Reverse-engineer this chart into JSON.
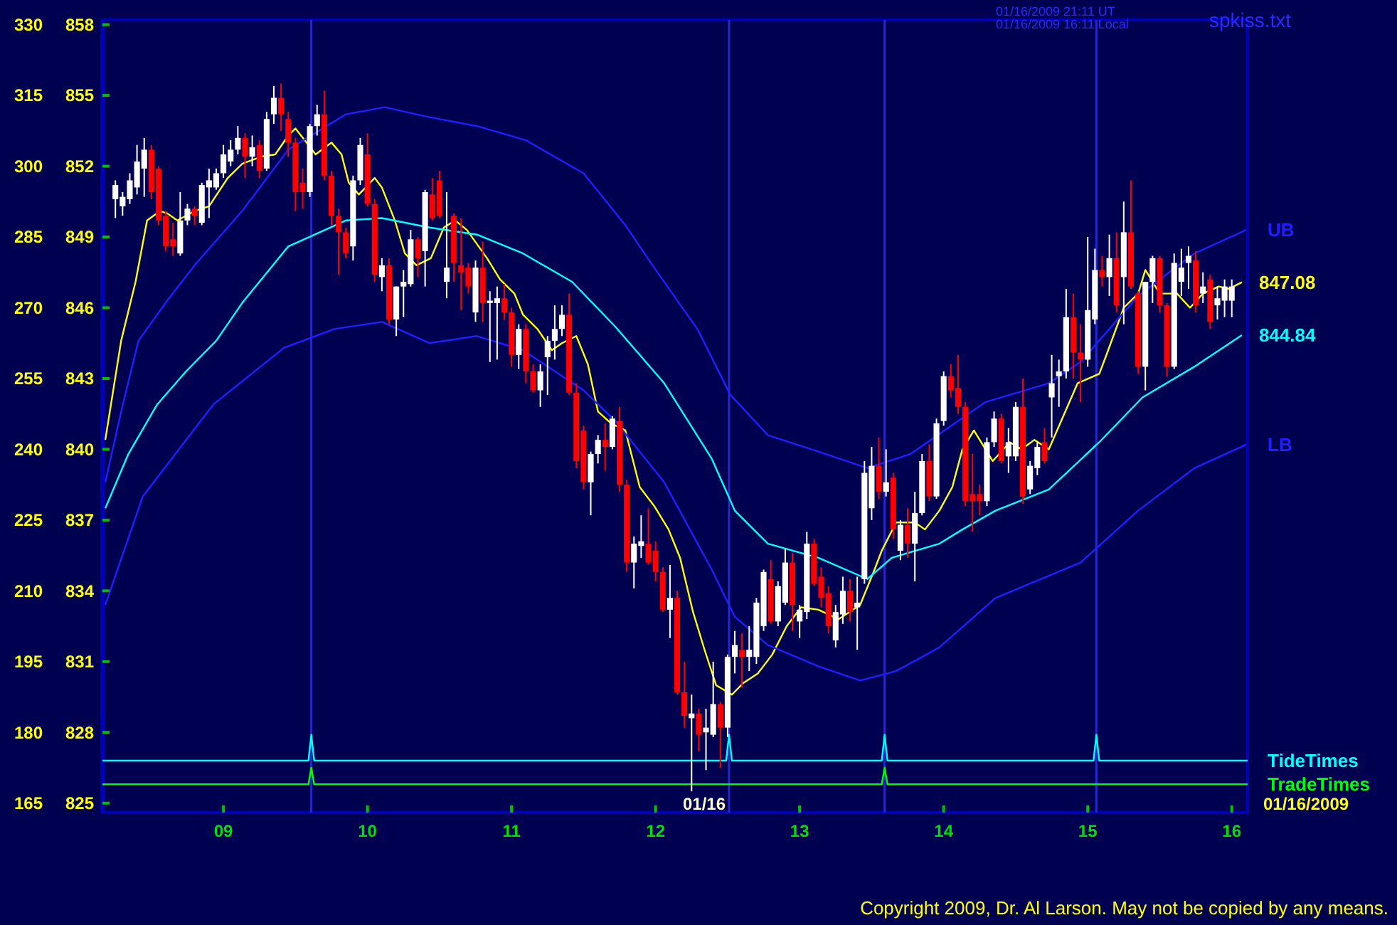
{
  "chart_data": {
    "type": "candlestick",
    "x": [
      8.25,
      8.3,
      8.35,
      8.4,
      8.45,
      8.5,
      8.55,
      8.6,
      8.65,
      8.7,
      8.75,
      8.8,
      8.85,
      8.9,
      8.95,
      9,
      9.05,
      9.1,
      9.15,
      9.2,
      9.25,
      9.3,
      9.35,
      9.4,
      9.45,
      9.5,
      9.55,
      9.6,
      9.65,
      9.7,
      9.75,
      9.8,
      9.85,
      9.9,
      9.95,
      10,
      10.05,
      10.1,
      10.15,
      10.2,
      10.25,
      10.3,
      10.35,
      10.4,
      10.45,
      10.5,
      10.55,
      10.6,
      10.65,
      10.7,
      10.75,
      10.8,
      10.85,
      10.9,
      10.95,
      11,
      11.05,
      11.1,
      11.15,
      11.2,
      11.25,
      11.3,
      11.35,
      11.4,
      11.45,
      11.5,
      11.55,
      11.6,
      11.65,
      11.7,
      11.75,
      11.8,
      11.85,
      11.9,
      11.95,
      12,
      12.05,
      12.1,
      12.15,
      12.2,
      12.25,
      12.3,
      12.35,
      12.4,
      12.45,
      12.5,
      12.55,
      12.6,
      12.65,
      12.7,
      12.75,
      12.8,
      12.85,
      12.9,
      12.95,
      13,
      13.05,
      13.1,
      13.15,
      13.2,
      13.25,
      13.3,
      13.35,
      13.4,
      13.45,
      13.5,
      13.55,
      13.6,
      13.65,
      13.7,
      13.75,
      13.8,
      13.85,
      13.9,
      13.95,
      14,
      14.05,
      14.1,
      14.15,
      14.2,
      14.25,
      14.3,
      14.35,
      14.4,
      14.45,
      14.5,
      14.55,
      14.6,
      14.65,
      14.7,
      14.75,
      14.8,
      14.85,
      14.9,
      14.95,
      15,
      15.05,
      15.1,
      15.15,
      15.2,
      15.25,
      15.3,
      15.35,
      15.4,
      15.45,
      15.5,
      15.55,
      15.6,
      15.65,
      15.7,
      15.75,
      15.8,
      15.85,
      15.9,
      15.95,
      16
    ],
    "ohlc": [
      [
        850.6,
        851.4,
        849.8,
        851.2
      ],
      [
        850.3,
        850.9,
        849.9,
        850.7
      ],
      [
        850.6,
        851.7,
        850.4,
        851.4
      ],
      [
        851.1,
        852.9,
        850.8,
        852.2
      ],
      [
        851.9,
        853.2,
        850.7,
        852.7
      ],
      [
        852.7,
        852.9,
        850.6,
        850.9
      ],
      [
        851.9,
        852.0,
        849.5,
        849.7
      ],
      [
        849.9,
        850.1,
        848.4,
        848.6
      ],
      [
        848.9,
        849.6,
        848.2,
        848.6
      ],
      [
        848.3,
        850.9,
        848.2,
        849.7
      ],
      [
        849.7,
        850.4,
        849.5,
        850.2
      ],
      [
        850.2,
        850.3,
        849.5,
        849.9
      ],
      [
        849.6,
        851.3,
        849.5,
        851.2
      ],
      [
        851.1,
        851.9,
        849.8,
        851.4
      ],
      [
        851.1,
        851.9,
        851.0,
        851.7
      ],
      [
        851.7,
        852.9,
        851.5,
        852.5
      ],
      [
        852.2,
        853.1,
        852.0,
        852.7
      ],
      [
        852.7,
        853.7,
        852.5,
        853.2
      ],
      [
        853.2,
        853.4,
        851.5,
        852.4
      ],
      [
        852.4,
        853.3,
        852.0,
        852.8
      ],
      [
        852.9,
        853.1,
        851.5,
        851.8
      ],
      [
        851.9,
        854.3,
        851.8,
        854.0
      ],
      [
        854.2,
        855.4,
        853.8,
        854.9
      ],
      [
        854.9,
        855.5,
        853.5,
        854.2
      ],
      [
        854.0,
        854.3,
        852.4,
        853.0
      ],
      [
        853.0,
        853.2,
        850.1,
        850.9
      ],
      [
        851.3,
        851.9,
        850.2,
        850.9
      ],
      [
        850.9,
        853.8,
        850.7,
        853.7
      ],
      [
        853.7,
        854.6,
        853.3,
        854.2
      ],
      [
        854.2,
        855.2,
        851.4,
        851.6
      ],
      [
        851.6,
        851.8,
        849.5,
        849.9
      ],
      [
        849.9,
        850.2,
        847.4,
        849.2
      ],
      [
        849.2,
        849.4,
        848.1,
        848.3
      ],
      [
        848.6,
        851.6,
        848.0,
        851.4
      ],
      [
        851.4,
        853.2,
        851.2,
        852.9
      ],
      [
        852.5,
        853.4,
        850.3,
        850.4
      ],
      [
        850.4,
        850.6,
        847.1,
        847.4
      ],
      [
        847.3,
        848.1,
        846.7,
        847.8
      ],
      [
        847.8,
        848.1,
        845.3,
        845.5
      ],
      [
        845.5,
        846.9,
        844.8,
        846.9
      ],
      [
        846.9,
        847.6,
        845.6,
        847.1
      ],
      [
        847.0,
        849.3,
        846.9,
        848.9
      ],
      [
        848.9,
        849.0,
        847.3,
        848.1
      ],
      [
        848.4,
        851.0,
        846.9,
        850.9
      ],
      [
        850.8,
        851.5,
        849.7,
        849.8
      ],
      [
        851.4,
        851.8,
        849.8,
        849.9
      ],
      [
        847.1,
        850.9,
        846.4,
        847.7
      ],
      [
        849.9,
        850.0,
        847.1,
        847.9
      ],
      [
        847.8,
        849.8,
        845.9,
        847.5
      ],
      [
        847.7,
        847.9,
        846.6,
        846.9
      ],
      [
        845.8,
        848.0,
        845.4,
        847.7
      ],
      [
        847.7,
        848.8,
        845.4,
        846.2
      ],
      [
        846.2,
        846.7,
        843.7,
        846.3
      ],
      [
        846.2,
        846.9,
        843.8,
        846.4
      ],
      [
        846.4,
        847.0,
        845.5,
        845.8
      ],
      [
        845.8,
        846.0,
        843.5,
        844.0
      ],
      [
        844.0,
        845.3,
        843.4,
        845.1
      ],
      [
        845.1,
        845.3,
        842.8,
        843.3
      ],
      [
        843.3,
        843.6,
        842.4,
        842.5
      ],
      [
        842.5,
        843.6,
        841.8,
        843.3
      ],
      [
        843.9,
        844.8,
        842.3,
        844.6
      ],
      [
        844.6,
        846.1,
        843.8,
        845.1
      ],
      [
        845.1,
        846.1,
        844.8,
        845.7
      ],
      [
        845.7,
        846.6,
        842.3,
        842.4
      ],
      [
        842.4,
        842.8,
        839.2,
        839.5
      ],
      [
        840.8,
        841.0,
        838.3,
        838.6
      ],
      [
        838.6,
        839.9,
        837.2,
        839.8
      ],
      [
        839.8,
        840.6,
        839.4,
        840.4
      ],
      [
        840.4,
        841.1,
        839.1,
        840.1
      ],
      [
        840.1,
        841.4,
        840.0,
        841.3
      ],
      [
        841.2,
        841.8,
        838.2,
        838.5
      ],
      [
        838.5,
        838.7,
        834.8,
        835.2
      ],
      [
        835.2,
        836.3,
        834.1,
        836.0
      ],
      [
        835.9,
        837.2,
        835.4,
        836.1
      ],
      [
        836.0,
        837.5,
        835.1,
        835.2
      ],
      [
        835.7,
        836.1,
        834.4,
        834.8
      ],
      [
        834.8,
        835.0,
        833.1,
        833.2
      ],
      [
        833.2,
        835.1,
        832.0,
        833.7
      ],
      [
        833.7,
        834.0,
        829.6,
        829.7
      ],
      [
        829.7,
        831.0,
        828.2,
        828.7
      ],
      [
        828.6,
        829.6,
        825.5,
        828.8
      ],
      [
        828.8,
        829.0,
        827.2,
        827.9
      ],
      [
        828.0,
        829.0,
        826.4,
        828.2
      ],
      [
        827.9,
        831.0,
        827.8,
        829.2
      ],
      [
        829.2,
        829.3,
        826.5,
        828.2
      ],
      [
        828.2,
        831.3,
        827.8,
        831.2
      ],
      [
        831.2,
        832.3,
        830.5,
        831.7
      ],
      [
        831.5,
        832.2,
        829.9,
        831.2
      ],
      [
        831.2,
        832.5,
        830.6,
        831.5
      ],
      [
        831.2,
        833.7,
        830.9,
        833.5
      ],
      [
        832.5,
        834.9,
        832.3,
        834.8
      ],
      [
        834.5,
        835.3,
        832.6,
        832.7
      ],
      [
        832.7,
        834.4,
        832.5,
        834.2
      ],
      [
        833.5,
        835.8,
        833.4,
        835.2
      ],
      [
        835.2,
        835.6,
        832.3,
        833.4
      ],
      [
        832.7,
        833.4,
        832.0,
        833.2
      ],
      [
        833.1,
        836.5,
        832.8,
        836.0
      ],
      [
        836.0,
        836.2,
        834.2,
        834.3
      ],
      [
        834.6,
        835.0,
        833.3,
        833.7
      ],
      [
        833.9,
        834.2,
        832.2,
        832.5
      ],
      [
        831.9,
        833.4,
        831.6,
        833.1
      ],
      [
        833.0,
        834.6,
        832.6,
        834.0
      ],
      [
        834.0,
        834.5,
        832.7,
        833.1
      ],
      [
        833.3,
        834.6,
        831.5,
        833.5
      ],
      [
        834.5,
        839.5,
        834.3,
        839.0
      ],
      [
        837.5,
        840.1,
        837.0,
        839.3
      ],
      [
        839.3,
        840.5,
        837.9,
        838.2
      ],
      [
        838.2,
        840.0,
        838.0,
        838.6
      ],
      [
        838.8,
        839.0,
        836.2,
        836.6
      ],
      [
        835.7,
        837.0,
        835.3,
        836.8
      ],
      [
        836.8,
        837.5,
        835.4,
        836.0
      ],
      [
        836.0,
        838.2,
        834.4,
        837.3
      ],
      [
        837.3,
        839.8,
        837.2,
        839.5
      ],
      [
        839.5,
        840.2,
        837.8,
        838.0
      ],
      [
        838.0,
        841.3,
        837.9,
        841.1
      ],
      [
        841.2,
        843.3,
        841.0,
        843.1
      ],
      [
        843.1,
        843.6,
        842.2,
        842.5
      ],
      [
        842.6,
        844.0,
        841.5,
        841.8
      ],
      [
        841.8,
        842.0,
        837.6,
        837.8
      ],
      [
        838.1,
        839.8,
        836.5,
        837.8
      ],
      [
        838.1,
        838.5,
        837.2,
        837.8
      ],
      [
        837.8,
        840.5,
        837.6,
        840.3
      ],
      [
        840.3,
        841.6,
        840.1,
        841.3
      ],
      [
        841.3,
        841.5,
        839.4,
        839.5
      ],
      [
        839.7,
        840.9,
        839.0,
        840.3
      ],
      [
        839.7,
        842.0,
        839.5,
        841.8
      ],
      [
        841.8,
        843.0,
        837.7,
        838.0
      ],
      [
        838.3,
        839.5,
        838.1,
        839.3
      ],
      [
        839.2,
        840.3,
        838.9,
        840.1
      ],
      [
        840.3,
        840.9,
        839.4,
        839.5
      ],
      [
        842.2,
        844.0,
        840.5,
        842.8
      ],
      [
        843.1,
        843.8,
        841.8,
        843.3
      ],
      [
        843.3,
        846.8,
        843.0,
        845.6
      ],
      [
        845.6,
        846.6,
        843.0,
        844.1
      ],
      [
        844.1,
        845.3,
        842.0,
        843.8
      ],
      [
        843.8,
        849.0,
        843.5,
        845.9
      ],
      [
        845.5,
        848.5,
        845.3,
        847.6
      ],
      [
        847.6,
        848.2,
        846.9,
        847.3
      ],
      [
        847.3,
        849.1,
        846.5,
        848.1
      ],
      [
        848.1,
        849.2,
        845.8,
        846.1
      ],
      [
        847.3,
        850.5,
        845.3,
        849.2
      ],
      [
        849.2,
        851.4,
        846.8,
        846.9
      ],
      [
        846.6,
        846.7,
        843.2,
        843.5
      ],
      [
        843.5,
        847.1,
        842.5,
        847.1
      ],
      [
        847.1,
        848.2,
        846.2,
        848.1
      ],
      [
        848.1,
        848.2,
        845.8,
        846.1
      ],
      [
        846.1,
        846.2,
        843.1,
        843.5
      ],
      [
        843.5,
        848.3,
        843.4,
        847.9
      ],
      [
        847.1,
        848.5,
        846.5,
        847.7
      ],
      [
        847.9,
        848.6,
        846.8,
        848.2
      ],
      [
        848.0,
        848.4,
        845.8,
        846.1
      ],
      [
        846.6,
        847.5,
        846.2,
        846.9
      ],
      [
        847.2,
        847.4,
        845.1,
        845.4
      ],
      [
        846.1,
        846.9,
        845.5,
        846.4
      ],
      [
        846.3,
        847.2,
        845.6,
        846.9
      ],
      [
        846.3,
        847.2,
        845.6,
        846.9
      ]
    ],
    "series": [
      {
        "type": "line",
        "color": "#ffff00",
        "x": [
          8.18,
          8.29,
          8.39,
          8.47,
          8.56,
          8.61,
          8.68,
          8.8,
          8.9,
          9.03,
          9.13,
          9.26,
          9.36,
          9.45,
          9.5,
          9.59,
          9.64,
          9.75,
          9.82,
          9.87,
          9.94,
          10.05,
          10.1,
          10.19,
          10.26,
          10.34,
          10.44,
          10.53,
          10.61,
          10.69,
          10.83,
          10.92,
          11.02,
          11.08,
          11.18,
          11.28,
          11.35,
          11.45,
          11.53,
          11.6,
          11.69,
          11.79,
          11.89,
          11.99,
          12.09,
          12.17,
          12.26,
          12.34,
          12.42,
          12.53,
          12.61,
          12.71,
          12.81,
          12.91,
          13.01,
          13.13,
          13.27,
          13.42,
          13.52,
          13.57,
          13.67,
          13.8,
          13.87,
          13.97,
          14.06,
          14.13,
          14.21,
          14.29,
          14.34,
          14.46,
          14.54,
          14.63,
          14.73,
          14.93,
          15.08,
          15.13,
          15.25,
          15.35,
          15.4,
          15.5,
          15.58,
          15.62,
          15.71,
          15.8,
          15.91,
          15.98,
          16.07
        ],
        "values": [
          840.4,
          844.6,
          847.1,
          849.7,
          850.1,
          850.0,
          849.7,
          850.1,
          850.3,
          851.5,
          852.1,
          852.4,
          852.5,
          853.3,
          853.6,
          852.9,
          852.5,
          853.0,
          852.5,
          851.3,
          850.8,
          851.5,
          851.1,
          849.7,
          848.3,
          847.8,
          848.1,
          849.4,
          849.7,
          849.3,
          848.1,
          847.2,
          846.6,
          845.7,
          845.1,
          844.2,
          844.5,
          844.8,
          843.6,
          841.6,
          841.1,
          840.8,
          838.4,
          837.6,
          836.6,
          835.4,
          833.1,
          831.5,
          830.0,
          829.6,
          830.1,
          830.5,
          831.3,
          832.5,
          833.3,
          833.2,
          832.8,
          833.4,
          834.9,
          835.7,
          836.9,
          836.9,
          836.6,
          837.4,
          838.4,
          840.0,
          840.8,
          840.0,
          839.5,
          840.3,
          840.0,
          840.4,
          840.0,
          842.8,
          843.2,
          844.0,
          846.0,
          846.6,
          847.6,
          846.6,
          846.6,
          846.6,
          846.0,
          846.6,
          846.9,
          846.8,
          847.08
        ]
      },
      {
        "type": "line",
        "color": "#00ffff",
        "x": [
          8.18,
          8.34,
          8.54,
          8.74,
          8.95,
          9.13,
          9.45,
          9.85,
          10.1,
          10.43,
          10.76,
          11.08,
          11.42,
          11.72,
          12.06,
          12.39,
          12.55,
          12.78,
          13.13,
          13.47,
          13.64,
          13.97,
          14.13,
          14.36,
          14.73,
          15.08,
          15.38,
          15.74,
          16.07
        ],
        "values": [
          837.5,
          839.8,
          841.9,
          843.3,
          844.6,
          846.2,
          848.6,
          849.7,
          849.8,
          849.4,
          849.1,
          848.3,
          847.1,
          845.2,
          842.8,
          839.6,
          837.4,
          836.0,
          835.4,
          834.5,
          835.4,
          836.0,
          836.6,
          837.4,
          838.3,
          840.3,
          842.2,
          843.5,
          844.84
        ]
      },
      {
        "type": "line",
        "name": "UB",
        "color": "#2020ff",
        "x": [
          8.18,
          8.29,
          8.41,
          8.61,
          8.8,
          9.13,
          9.45,
          9.85,
          10.12,
          10.41,
          10.76,
          11.1,
          11.5,
          11.79,
          11.99,
          12.29,
          12.52,
          12.78,
          13.13,
          13.47,
          13.77,
          14.29,
          14.73,
          14.95,
          15.35,
          15.74,
          16.1
        ],
        "values": [
          838.6,
          841.6,
          844.6,
          846.3,
          847.8,
          850.1,
          852.7,
          854.2,
          854.5,
          854.1,
          853.7,
          853.1,
          851.7,
          849.5,
          847.7,
          845.1,
          842.3,
          840.6,
          839.9,
          839.2,
          839.8,
          842.0,
          842.8,
          843.7,
          846.5,
          848.3,
          849.3
        ]
      },
      {
        "type": "line",
        "name": "LB",
        "color": "#2020ff",
        "x": [
          8.18,
          8.44,
          8.93,
          9.42,
          9.77,
          10.1,
          10.43,
          10.76,
          11.08,
          11.5,
          11.72,
          12.06,
          12.39,
          12.55,
          12.78,
          13.13,
          13.42,
          13.67,
          13.97,
          14.36,
          14.95,
          15.35,
          15.74,
          16.1
        ],
        "values": [
          833.4,
          838.0,
          841.9,
          844.3,
          845.1,
          845.4,
          844.5,
          844.8,
          844.2,
          842.5,
          841.2,
          838.6,
          834.9,
          832.9,
          831.7,
          830.8,
          830.2,
          830.6,
          831.6,
          833.7,
          835.2,
          837.4,
          839.2,
          840.2
        ]
      },
      {
        "type": "line",
        "name": "TideTimes",
        "color": "#00ffff",
        "x": [
          8.16,
          9.59,
          9.61,
          9.63,
          12.49,
          12.51,
          12.53,
          13.57,
          13.59,
          13.61,
          15.04,
          15.06,
          15.08,
          16.11
        ],
        "values": [
          826.8,
          826.8,
          827.9,
          826.8,
          826.8,
          827.9,
          826.8,
          826.8,
          827.9,
          826.8,
          826.8,
          827.9,
          826.8,
          826.8
        ]
      },
      {
        "type": "line",
        "name": "TradeTimes",
        "color": "#00ff00",
        "x": [
          8.16,
          9.59,
          9.61,
          9.63,
          13.57,
          13.59,
          13.61,
          16.11
        ],
        "values": [
          825.8,
          825.8,
          826.5,
          825.8,
          825.8,
          826.5,
          825.8,
          825.8
        ]
      }
    ],
    "xlim": [
      8.16,
      16.11
    ],
    "xticks": [
      {
        "value": 9,
        "label": "09"
      },
      10,
      11,
      12,
      13,
      14,
      15,
      16
    ],
    "ylim": [
      824.6,
      858.2
    ],
    "yticks": [
      825,
      828,
      831,
      834,
      837,
      840,
      843,
      846,
      849,
      852,
      855,
      858
    ],
    "y2lim": [
      163,
      331
    ],
    "y2ticks": [
      165,
      180,
      195,
      210,
      225,
      240,
      255,
      270,
      285,
      300,
      315,
      330
    ],
    "ref_lines": [
      {
        "axis": "x",
        "value": 9.61,
        "color": "#2828c8"
      },
      {
        "axis": "x",
        "value": 12.51,
        "color": "#2828c8"
      },
      {
        "axis": "x",
        "value": 13.59,
        "color": "#2828c8"
      },
      {
        "axis": "x",
        "value": 15.06,
        "color": "#2828c8"
      }
    ],
    "annotations": [
      "01/16",
      "01/16/2009 21:11 UT",
      "01/16/2009 16:11 Local",
      "spkiss.txt",
      "01/16/2009",
      "Copyright 2009, Dr. Al Larson. May not be copied by any means.",
      {
        "text": "847.08",
        "x": 16.07,
        "y": 847.08
      },
      {
        "text": "844.84",
        "x": 16.07,
        "y": 844.84
      }
    ]
  }
}
